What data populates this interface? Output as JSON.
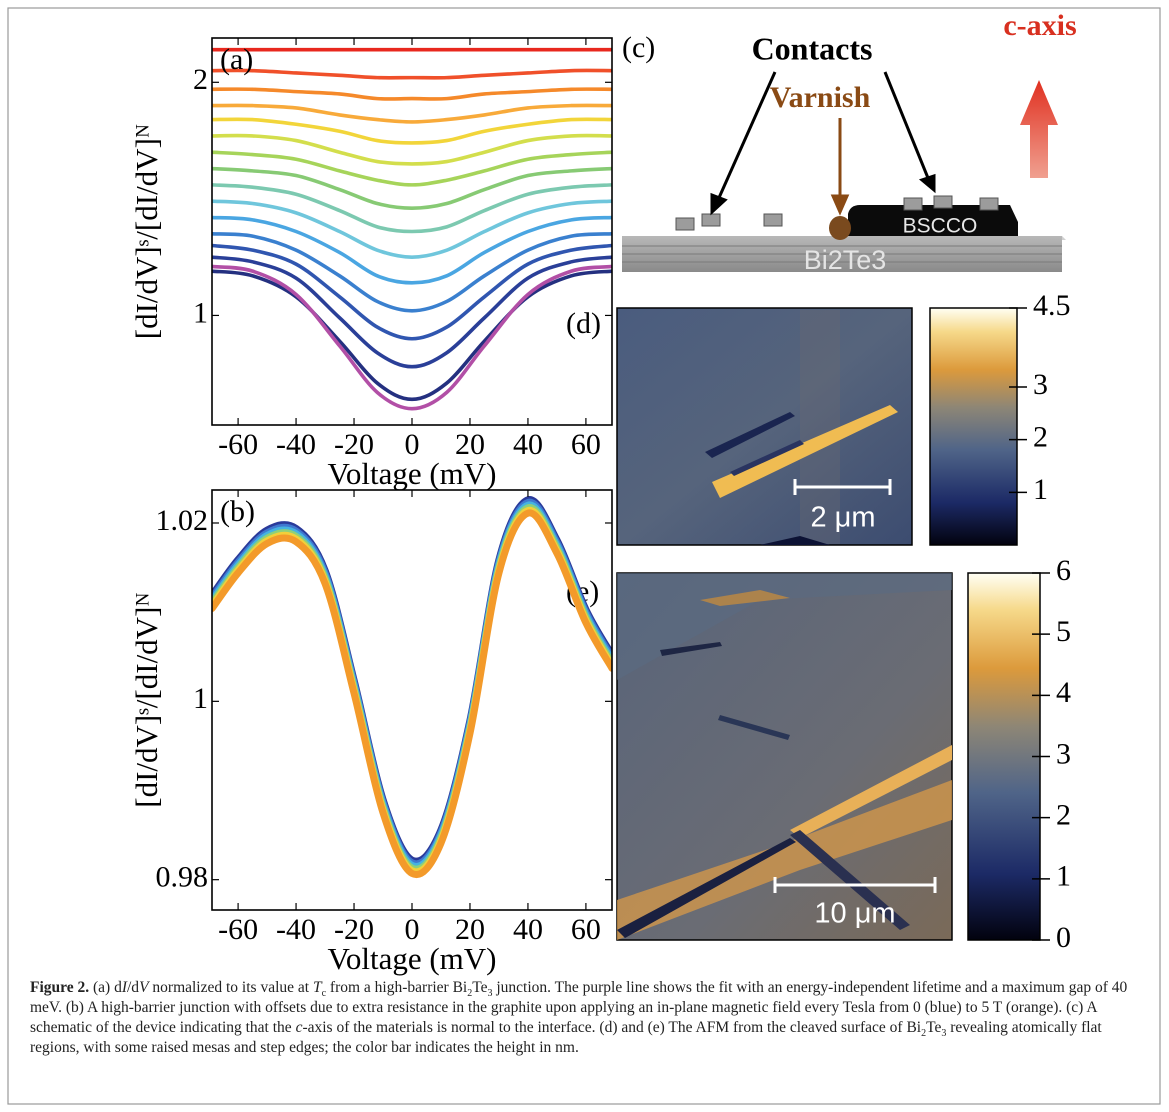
{
  "chart_data": [
    {
      "type": "line",
      "label": "(a)",
      "xlabel": "Voltage (mV)",
      "ylabel": "[dI/dV]ˢ/[dI/dV]ᴺ",
      "x": [
        -69,
        -55,
        -40,
        -25,
        -12,
        0,
        12,
        25,
        40,
        55,
        69
      ],
      "xlim": [
        -69,
        69
      ],
      "xticks": [
        -60,
        -40,
        -20,
        0,
        20,
        40,
        60
      ],
      "ylim": [
        0.53,
        2.19
      ],
      "yticks": [
        1,
        2
      ],
      "series": [
        {
          "color": "#e8281e",
          "values": [
            2.14,
            2.14,
            2.14,
            2.14,
            2.14,
            2.14,
            2.14,
            2.14,
            2.14,
            2.14,
            2.14
          ]
        },
        {
          "color": "#f0502a",
          "values": [
            2.05,
            2.05,
            2.04,
            2.03,
            2.02,
            2.02,
            2.02,
            2.03,
            2.04,
            2.05,
            2.05
          ]
        },
        {
          "color": "#f5892a",
          "values": [
            1.97,
            1.97,
            1.96,
            1.95,
            1.93,
            1.93,
            1.93,
            1.95,
            1.96,
            1.97,
            1.97
          ]
        },
        {
          "color": "#f8aa3a",
          "values": [
            1.9,
            1.9,
            1.89,
            1.86,
            1.84,
            1.83,
            1.84,
            1.86,
            1.89,
            1.9,
            1.9
          ]
        },
        {
          "color": "#f2d53a",
          "values": [
            1.84,
            1.84,
            1.82,
            1.79,
            1.75,
            1.74,
            1.75,
            1.79,
            1.82,
            1.84,
            1.84
          ]
        },
        {
          "color": "#d3de4c",
          "values": [
            1.77,
            1.77,
            1.75,
            1.7,
            1.66,
            1.65,
            1.66,
            1.7,
            1.75,
            1.77,
            1.77
          ]
        },
        {
          "color": "#a6d45a",
          "values": [
            1.7,
            1.69,
            1.67,
            1.62,
            1.58,
            1.56,
            1.58,
            1.62,
            1.67,
            1.69,
            1.7
          ]
        },
        {
          "color": "#87ca74",
          "values": [
            1.63,
            1.62,
            1.6,
            1.54,
            1.48,
            1.46,
            1.48,
            1.54,
            1.6,
            1.62,
            1.63
          ]
        },
        {
          "color": "#7cc9b0",
          "values": [
            1.56,
            1.55,
            1.52,
            1.45,
            1.38,
            1.36,
            1.38,
            1.45,
            1.52,
            1.55,
            1.56
          ]
        },
        {
          "color": "#6fc6dc",
          "values": [
            1.49,
            1.48,
            1.44,
            1.36,
            1.28,
            1.25,
            1.28,
            1.36,
            1.44,
            1.48,
            1.49
          ]
        },
        {
          "color": "#4aa6e2",
          "values": [
            1.42,
            1.41,
            1.36,
            1.27,
            1.17,
            1.14,
            1.17,
            1.27,
            1.36,
            1.41,
            1.42
          ]
        },
        {
          "color": "#3a80cf",
          "values": [
            1.35,
            1.34,
            1.28,
            1.17,
            1.06,
            1.02,
            1.06,
            1.17,
            1.28,
            1.34,
            1.35
          ]
        },
        {
          "color": "#3056b0",
          "values": [
            1.3,
            1.28,
            1.22,
            1.08,
            0.95,
            0.9,
            0.95,
            1.08,
            1.22,
            1.28,
            1.3
          ]
        },
        {
          "color": "#2a3f98",
          "values": [
            1.25,
            1.23,
            1.16,
            0.99,
            0.84,
            0.78,
            0.84,
            0.99,
            1.16,
            1.23,
            1.25
          ]
        },
        {
          "color": "#243080",
          "values": [
            1.19,
            1.17,
            1.08,
            0.89,
            0.71,
            0.64,
            0.71,
            0.89,
            1.08,
            1.17,
            1.19
          ]
        },
        {
          "color": "#b24fa6",
          "values": [
            1.21,
            1.19,
            1.09,
            0.87,
            0.67,
            0.6,
            0.67,
            0.87,
            1.09,
            1.19,
            1.21
          ]
        }
      ]
    },
    {
      "type": "line",
      "label": "(b)",
      "xlabel": "Voltage (mV)",
      "ylabel": "[dI/dV]ˢ/[dI/dV]ᴺ",
      "x": [
        -69,
        -60,
        -50,
        -40,
        -30,
        -20,
        -10,
        0,
        10,
        20,
        30,
        40,
        50,
        60,
        69
      ],
      "xlim": [
        -69,
        69
      ],
      "xticks": [
        -60,
        -40,
        -20,
        0,
        20,
        40,
        60
      ],
      "ylim": [
        0.9766,
        1.0237
      ],
      "yticks": [
        0.98,
        1,
        1.02
      ],
      "series": [
        {
          "color": "#2a3a9a",
          "values": [
            1.0119,
            1.0159,
            1.0192,
            1.0194,
            1.0147,
            1.0024,
            0.989,
            0.9822,
            0.9856,
            0.9979,
            1.0159,
            1.0226,
            1.0181,
            1.0103,
            1.0052
          ]
        },
        {
          "color": "#3f78d0",
          "values": [
            1.0116,
            1.0156,
            1.0189,
            1.0191,
            1.0144,
            1.0021,
            0.9887,
            0.9819,
            0.9853,
            0.9976,
            1.0156,
            1.0223,
            1.0178,
            1.01,
            1.0049
          ]
        },
        {
          "color": "#45b3e0",
          "values": [
            1.0113,
            1.0153,
            1.0186,
            1.0188,
            1.0141,
            1.0018,
            0.9884,
            0.9816,
            0.985,
            0.9973,
            1.0153,
            1.022,
            1.0175,
            1.0097,
            1.0046
          ]
        },
        {
          "color": "#8dd07a",
          "values": [
            1.011,
            1.015,
            1.0183,
            1.0185,
            1.0138,
            1.0015,
            0.9881,
            0.9813,
            0.9847,
            0.997,
            1.015,
            1.0217,
            1.0172,
            1.0094,
            1.0043
          ]
        },
        {
          "color": "#f2cf3a",
          "values": [
            1.0107,
            1.0147,
            1.018,
            1.0182,
            1.0135,
            1.0012,
            0.9878,
            0.981,
            0.9844,
            0.9967,
            1.0147,
            1.0214,
            1.0169,
            1.0091,
            1.004
          ]
        },
        {
          "color": "#f39a2a",
          "values": [
            1.0104,
            1.0144,
            1.0177,
            1.0179,
            1.0132,
            1.0009,
            0.9875,
            0.9807,
            0.9841,
            0.9964,
            1.0144,
            1.0211,
            1.0166,
            1.0088,
            1.0037
          ]
        }
      ]
    }
  ],
  "schematic": {
    "label": "(c)",
    "axis_label": "c-axis",
    "contacts": "Contacts",
    "varnish": "Varnish",
    "bscco": "BSCCO",
    "substrate": "Bi2Te3"
  },
  "images": [
    {
      "label": "(d)",
      "scale_bar": "2 μm",
      "colorbar": {
        "lim": [
          0,
          4.5
        ],
        "ticks": [
          1,
          2,
          3,
          4.5
        ]
      }
    },
    {
      "label": "(e)",
      "scale_bar": "10 μm",
      "colorbar": {
        "lim": [
          0,
          6
        ],
        "ticks": [
          0,
          1,
          2,
          3,
          4,
          5,
          6
        ]
      }
    }
  ],
  "caption": {
    "label": "Figure 2.",
    "parts": [
      " (a) d",
      "I",
      "/d",
      "V",
      " normalized to its value at ",
      "T",
      "c",
      " from a high-barrier Bi",
      "2",
      "Te",
      "3",
      " junction. The purple line shows the  fit with an energy-independent lifetime and a maximum gap of 40 meV. (b) A high-barrier junction with offsets due to extra resistance in the graphite upon applying an in-plane magnetic field every Tesla from 0 (blue) to 5  T (orange). (c) A schematic of the device indicating that  the ",
      "c",
      "-axis of the materials is normal to the interface. (d) and (e) The  AFM from the cleaved surface of Bi",
      "2",
      "Te",
      "3",
      " revealing atomically flat regions, with some raised mesas and step edges; the color bar indicates the height in nm."
    ]
  }
}
